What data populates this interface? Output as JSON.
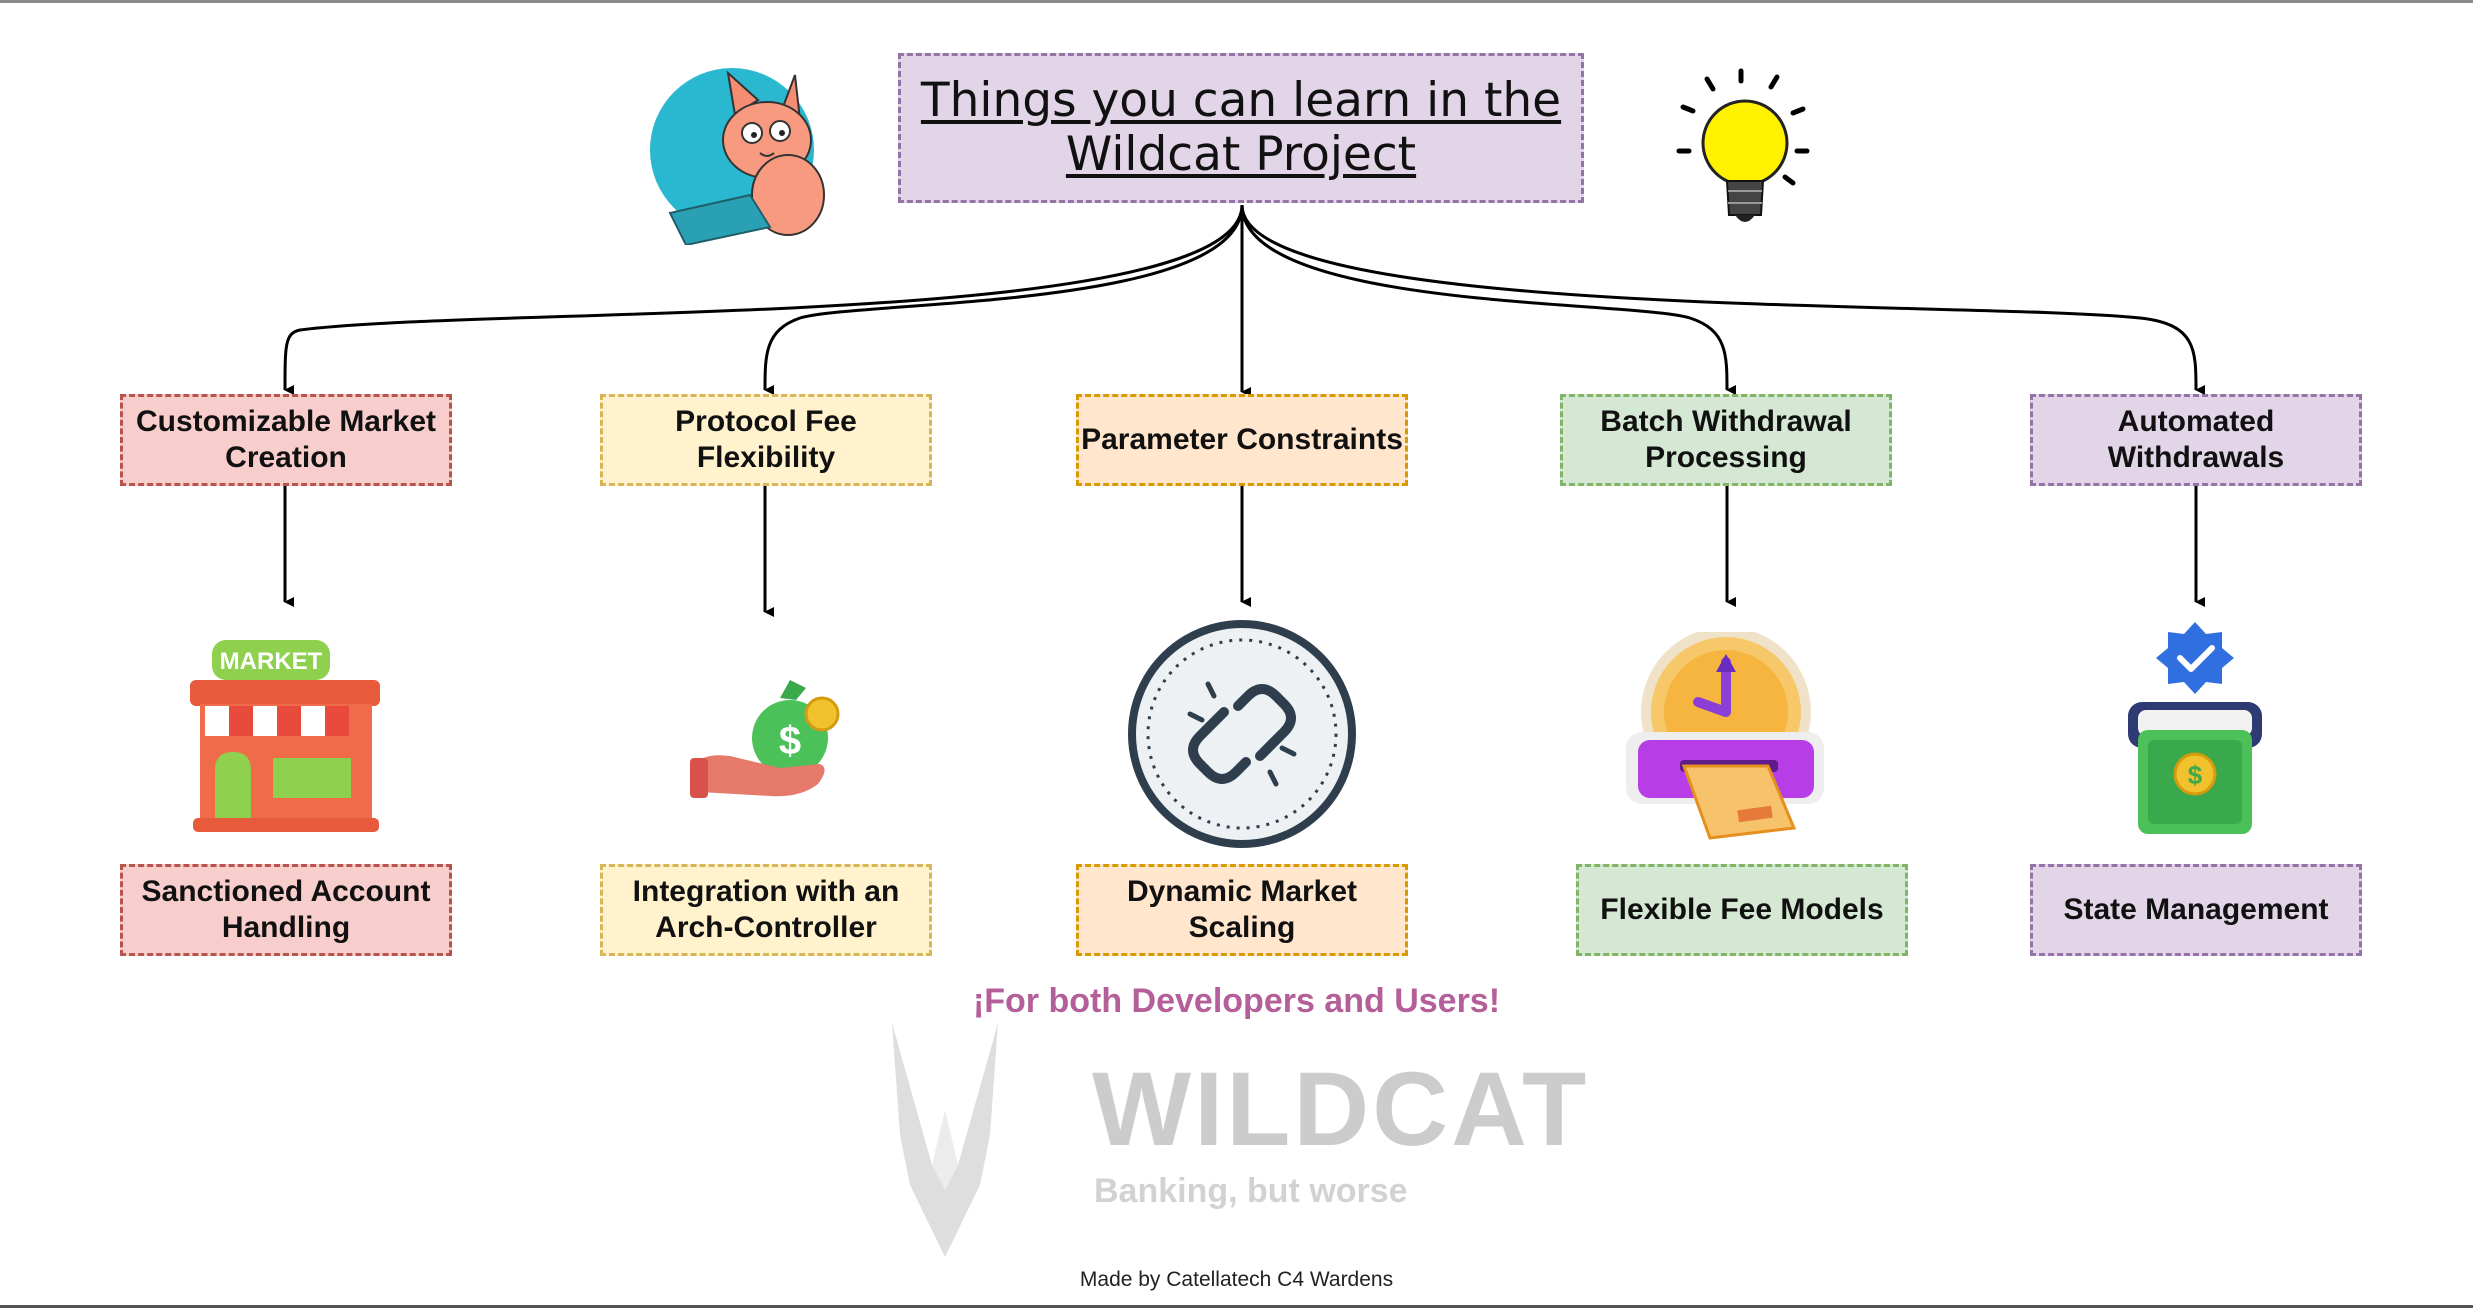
{
  "title": "Things you can learn in the Wildcat Project",
  "features": [
    {
      "top": "Customizable Market Creation",
      "bottom": "Sanctioned Account Handling",
      "top_icon": "market-store-icon"
    },
    {
      "top": "Protocol Fee Flexibility",
      "bottom": "Integration with an Arch-Controller",
      "top_icon": "money-bag-hand-icon"
    },
    {
      "top": "Parameter Constraints",
      "bottom": "Dynamic Market Scaling",
      "top_icon": "chain-link-icon"
    },
    {
      "top": "Batch Withdrawal Processing",
      "bottom": "Flexible Fee Models",
      "top_icon": "clock-card-reader-icon"
    },
    {
      "top": "Automated Withdrawals",
      "bottom": "State Management",
      "top_icon": "cash-withdrawal-icon"
    }
  ],
  "market_sign": "MARKET",
  "currency_symbol": "$",
  "tagline": "¡For both Developers and Users!",
  "brand": {
    "name": "WILDCAT",
    "tagline": "Banking, but worse"
  },
  "credit": "Made by Catellatech C4 Wardens",
  "colors": {
    "red_fill": "#f8cecc",
    "yellow_fill": "#fff2cc",
    "orange_fill": "#ffe6cc",
    "green_fill": "#d5e8d4",
    "purple_fill": "#e1d5e7",
    "tagline": "#b45f99"
  }
}
